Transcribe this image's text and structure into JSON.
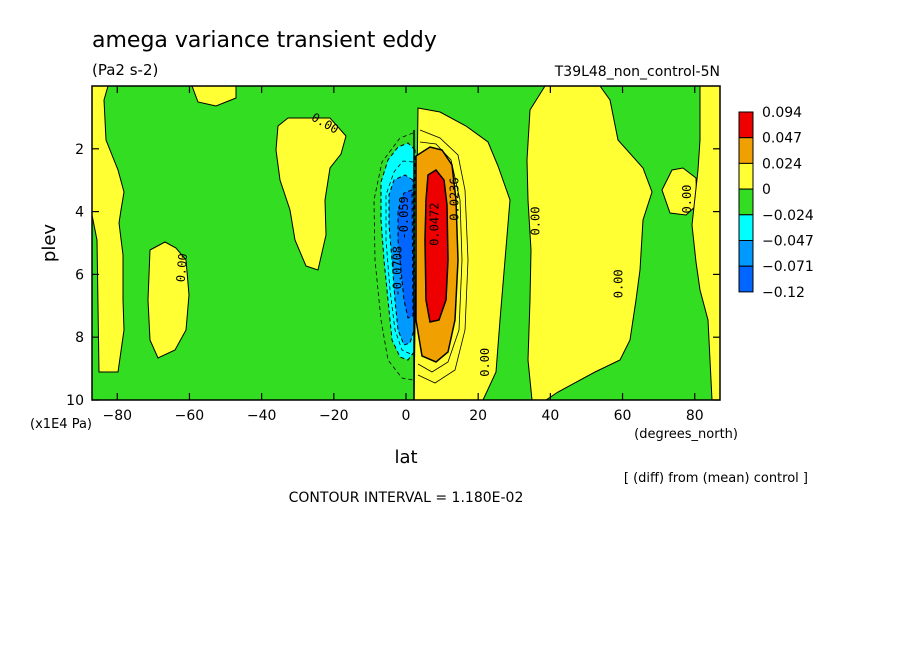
{
  "chart_data": {
    "type": "heatmap",
    "title": "amega variance transient eddy",
    "units": "(Pa2 s-2)",
    "run_label": "T39L48_non_control-5N",
    "xlabel": "lat",
    "x_unit": "(degrees_north)",
    "ylabel": "plev",
    "y_unit": "(x1E4 Pa)",
    "xlim": [
      -87,
      87
    ],
    "ylim": [
      10,
      0
    ],
    "x_ticks": [
      -80,
      -60,
      -40,
      -20,
      0,
      20,
      40,
      60,
      80
    ],
    "y_ticks": [
      2,
      4,
      6,
      8,
      10
    ],
    "x_tick_labels": [
      "−80",
      "−60",
      "−40",
      "−20",
      "0",
      "20",
      "40",
      "60",
      "80"
    ],
    "y_tick_labels": [
      "2",
      "4",
      "6",
      "8",
      "10"
    ],
    "note": "[ (diff) from (mean) control ]",
    "contour_interval": "CONTOUR INTERVAL = 1.180E-02",
    "colorbar": {
      "labels": [
        "0.094",
        "0.047",
        "0.024",
        "0",
        "−0.024",
        "−0.047",
        "−0.071",
        "−0.12"
      ],
      "colors": [
        "#ee0000",
        "#f0a000",
        "#ffff33",
        "#33dd22",
        "#00ffff",
        "#0099ff",
        "#0066ff"
      ]
    },
    "contour_labels": [
      {
        "text": "0.00",
        "lat": -23,
        "plev": 1.3,
        "rotate": 30
      },
      {
        "text": "0.00",
        "lat": -61,
        "plev": 5.8,
        "rotate": -85
      },
      {
        "text": "0.00",
        "lat": 37,
        "plev": 4.3,
        "rotate": -90
      },
      {
        "text": "0.00",
        "lat": 60,
        "plev": 6.3,
        "rotate": -90
      },
      {
        "text": "0.00",
        "lat": 79,
        "plev": 3.6,
        "rotate": -90
      },
      {
        "text": "0.00",
        "lat": 23,
        "plev": 8.8,
        "rotate": -90
      },
      {
        "text": "0.0472",
        "lat": 9,
        "plev": 4.4,
        "rotate": -90
      },
      {
        "text": "0.0236",
        "lat": 14.5,
        "plev": 3.6,
        "rotate": -90
      },
      {
        "text": "-0.0708",
        "lat": -1.3,
        "plev": 5.9,
        "rotate": -90
      },
      {
        "text": "-0.059",
        "lat": 0.6,
        "plev": 4.2,
        "rotate": -90
      }
    ]
  }
}
